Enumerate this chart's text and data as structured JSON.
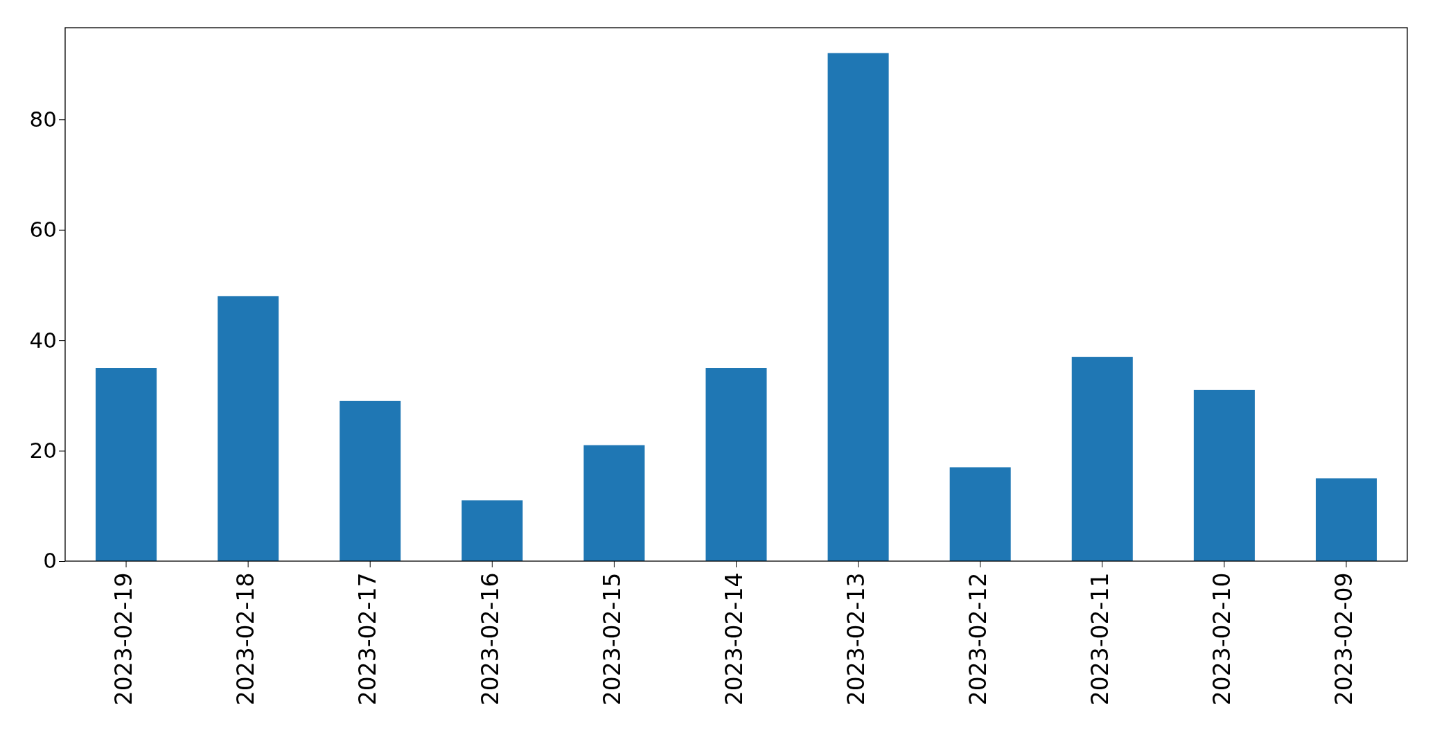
{
  "chart_data": {
    "type": "bar",
    "categories": [
      "2023-02-19",
      "2023-02-18",
      "2023-02-17",
      "2023-02-16",
      "2023-02-15",
      "2023-02-14",
      "2023-02-13",
      "2023-02-12",
      "2023-02-11",
      "2023-02-10",
      "2023-02-09"
    ],
    "values": [
      35,
      48,
      29,
      11,
      21,
      35,
      92,
      17,
      37,
      31,
      15
    ],
    "color": "#1f77b4",
    "ylim": [
      0,
      96.6
    ],
    "yticks": [
      0,
      20,
      40,
      60,
      80
    ],
    "grid": false
  }
}
